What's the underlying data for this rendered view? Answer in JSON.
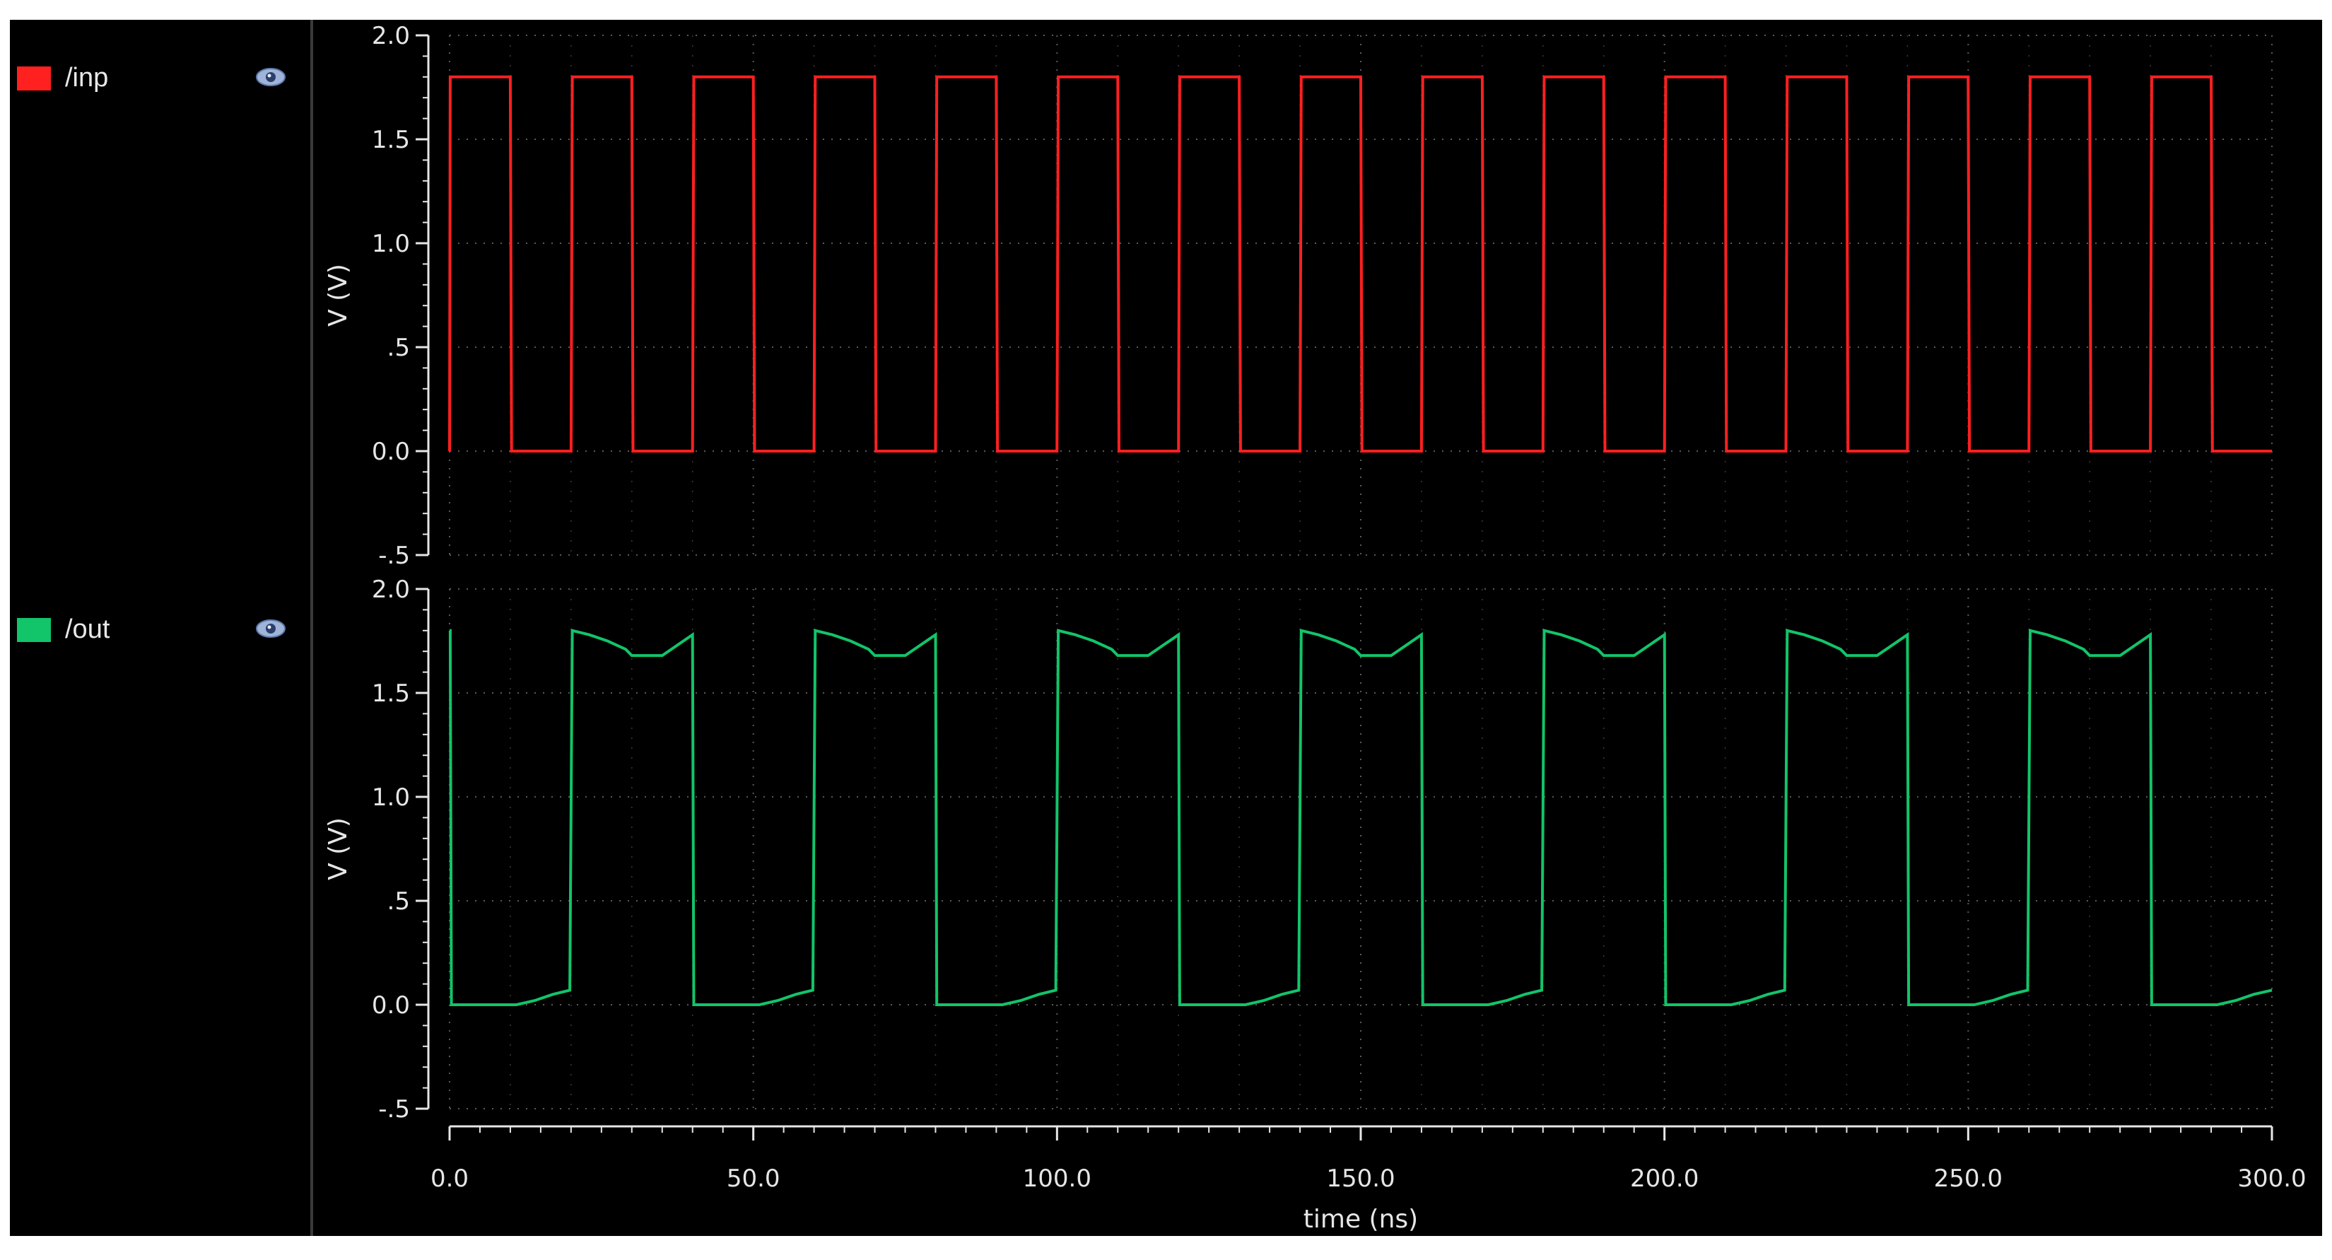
{
  "chart_data": {
    "type": "line",
    "xlabel": "time (ns)",
    "xlim": [
      0,
      300
    ],
    "xticks": [
      0,
      50,
      100,
      150,
      200,
      250,
      300
    ],
    "xtick_labels": [
      "0.0",
      "50.0",
      "100.0",
      "150.0",
      "200.0",
      "250.0",
      "300.0"
    ],
    "grid": true,
    "panels": [
      {
        "ylabel": "V (V)",
        "ylim": [
          -0.5,
          2.0
        ],
        "yticks": [
          -0.5,
          0.0,
          0.5,
          1.0,
          1.5,
          2.0
        ],
        "ytick_labels": [
          "-.5",
          "0.0",
          ".5",
          "1.0",
          "1.5",
          "2.0"
        ],
        "series": [
          {
            "name": "/inp",
            "color": "#ff2020",
            "x": [
              0,
              0.1,
              10,
              10.2,
              20,
              20.2,
              30,
              30.2,
              40,
              40.2,
              50,
              50.2,
              60,
              60.2,
              70,
              70.2,
              80,
              80.2,
              90,
              90.2,
              100,
              100.2,
              110,
              110.2,
              120,
              120.2,
              130,
              130.2,
              140,
              140.2,
              150,
              150.2,
              160,
              160.2,
              170,
              170.2,
              180,
              180.2,
              190,
              190.2,
              200,
              200.2,
              210,
              210.2,
              220,
              220.2,
              230,
              230.2,
              240,
              240.2,
              250,
              250.2,
              260,
              260.2,
              270,
              270.2,
              280,
              280.2,
              290,
              290.2,
              300
            ],
            "y": [
              0,
              1.8,
              1.8,
              0,
              0,
              1.8,
              1.8,
              0,
              0,
              1.8,
              1.8,
              0,
              0,
              1.8,
              1.8,
              0,
              0,
              1.8,
              1.8,
              0,
              0,
              1.8,
              1.8,
              0,
              0,
              1.8,
              1.8,
              0,
              0,
              1.8,
              1.8,
              0,
              0,
              1.8,
              1.8,
              0,
              0,
              1.8,
              1.8,
              0,
              0,
              1.8,
              1.8,
              0,
              0,
              1.8,
              1.8,
              0,
              0,
              1.8,
              1.8,
              0,
              0,
              1.8,
              1.8,
              0,
              0,
              1.8,
              1.8,
              0,
              0
            ]
          }
        ]
      },
      {
        "ylabel": "V (V)",
        "ylim": [
          -0.5,
          2.0
        ],
        "yticks": [
          -0.5,
          0.0,
          0.5,
          1.0,
          1.5,
          2.0
        ],
        "ytick_labels": [
          "-.5",
          "0.0",
          ".5",
          "1.0",
          "1.5",
          "2.0"
        ],
        "series": [
          {
            "name": "/out",
            "color": "#12c46a",
            "x": [
              0,
              0.1,
              0.3,
              11,
              14,
              17,
              19.8,
              20.2,
              23,
              26,
              29,
              30,
              31,
              35,
              40,
              40.2,
              51,
              54,
              57,
              59.8,
              60.2,
              63,
              66,
              69,
              70,
              71,
              75,
              80,
              80.2,
              91,
              94,
              97,
              99.8,
              100.2,
              103,
              106,
              109,
              110,
              111,
              115,
              120,
              120.2,
              131,
              134,
              137,
              139.8,
              140.2,
              143,
              146,
              149,
              150,
              151,
              155,
              160,
              160.2,
              171,
              174,
              177,
              179.8,
              180.2,
              183,
              186,
              189,
              190,
              191,
              195,
              200,
              200.2,
              211,
              214,
              217,
              219.8,
              220.2,
              223,
              226,
              229,
              230,
              231,
              235,
              240,
              240.2,
              251,
              254,
              257,
              259.8,
              260.2,
              263,
              266,
              269,
              270,
              271,
              275,
              280,
              280.2,
              291,
              294,
              297,
              300
            ],
            "y": [
              1.8,
              1.8,
              0,
              0,
              0.02,
              0.05,
              0.07,
              1.8,
              1.78,
              1.75,
              1.71,
              1.68,
              1.68,
              1.68,
              1.78,
              0,
              0,
              0.02,
              0.05,
              0.07,
              1.8,
              1.78,
              1.75,
              1.71,
              1.68,
              1.68,
              1.68,
              1.78,
              0,
              0,
              0.02,
              0.05,
              0.07,
              1.8,
              1.78,
              1.75,
              1.71,
              1.68,
              1.68,
              1.68,
              1.78,
              0,
              0,
              0.02,
              0.05,
              0.07,
              1.8,
              1.78,
              1.75,
              1.71,
              1.68,
              1.68,
              1.68,
              1.78,
              0,
              0,
              0.02,
              0.05,
              0.07,
              1.8,
              1.78,
              1.75,
              1.71,
              1.68,
              1.68,
              1.68,
              1.78,
              0,
              0,
              0.02,
              0.05,
              0.07,
              1.8,
              1.78,
              1.75,
              1.71,
              1.68,
              1.68,
              1.68,
              1.78,
              0,
              0,
              0.02,
              0.05,
              0.07,
              1.8,
              1.78,
              1.75,
              1.71,
              1.68,
              1.68,
              1.68,
              1.78,
              0,
              0,
              0.02,
              0.05,
              0.07
            ]
          }
        ]
      }
    ]
  },
  "legend": {
    "items": [
      {
        "label": "/inp",
        "color": "#ff2020",
        "visibility_icon": "eye-icon"
      },
      {
        "label": "/out",
        "color": "#12c46a",
        "visibility_icon": "eye-icon"
      }
    ]
  }
}
